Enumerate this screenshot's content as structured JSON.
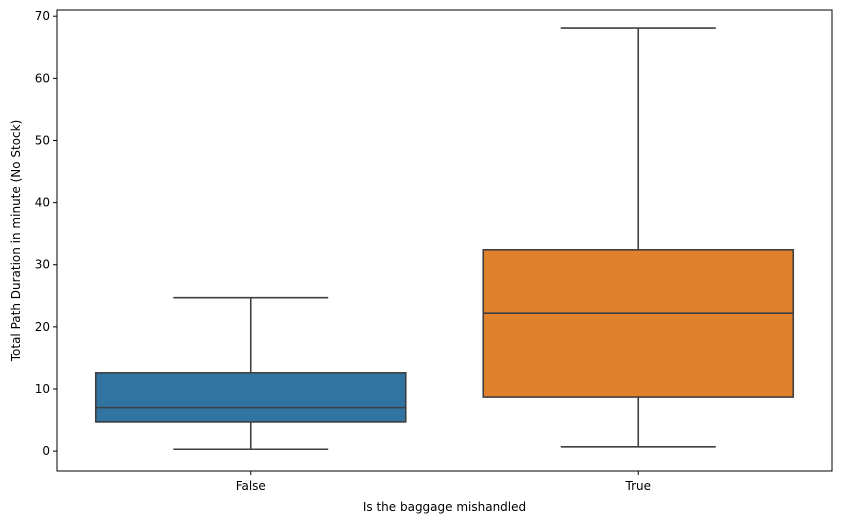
{
  "chart_data": {
    "type": "box",
    "xlabel": "Is the baggage mishandled",
    "ylabel": "Total Path Duration in minute (No Stock)",
    "ylim": [
      -3.2,
      71.0
    ],
    "yticks": [
      0,
      10,
      20,
      30,
      40,
      50,
      60,
      70
    ],
    "categories": [
      "False",
      "True"
    ],
    "boxes": [
      {
        "category": "False",
        "whisker_low": 0.3,
        "q1": 4.7,
        "median": 7.0,
        "q3": 12.6,
        "whisker_high": 24.7,
        "color": "#3274a1"
      },
      {
        "category": "True",
        "whisker_low": 0.7,
        "q1": 8.7,
        "median": 22.2,
        "q3": 32.4,
        "whisker_high": 68.1,
        "color": "#e1812c"
      }
    ],
    "grid": false,
    "line_color": "#3f3f3f"
  }
}
